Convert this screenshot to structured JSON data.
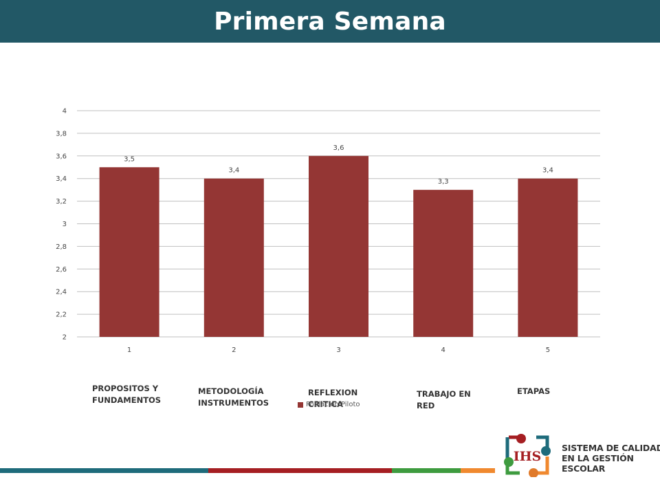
{
  "header": {
    "title": "Primera Semana"
  },
  "colors": {
    "header_bg": "#225866",
    "bar": "#943634",
    "grid": "#bfbfbf",
    "axis_text": "#444444",
    "stripe": [
      "#1e6b7b",
      "#a51e22",
      "#3e9b3f",
      "#f0892f"
    ]
  },
  "chart_data": {
    "type": "bar",
    "categories": [
      "1",
      "2",
      "3",
      "4",
      "5"
    ],
    "series": [
      {
        "name": "Población Piloto",
        "values": [
          3.5,
          3.4,
          3.6,
          3.3,
          3.4
        ]
      }
    ],
    "data_labels": [
      "3,5",
      "3,4",
      "3,6",
      "3,3",
      "3,4"
    ],
    "yticks": [
      "2",
      "2,2",
      "2,4",
      "2,6",
      "2,8",
      "3",
      "3,2",
      "3,4",
      "3,6",
      "3,8",
      "4"
    ],
    "ylim": [
      2,
      4
    ],
    "grid": true,
    "legend_position": "bottom",
    "category_descriptions": [
      "PROPOSITOS Y\nFUNDAMENTOS",
      "METODOLOGÍA\nINSTRUMENTOS",
      "REFLEXION\nCRITICA",
      "TRABAJO EN\nRED",
      "ETAPAS"
    ]
  },
  "logo": {
    "mark": "IHS",
    "lines": [
      "SISTEMA DE CALIDAD",
      "EN LA GESTIÓN",
      "ESCOLAR"
    ]
  }
}
